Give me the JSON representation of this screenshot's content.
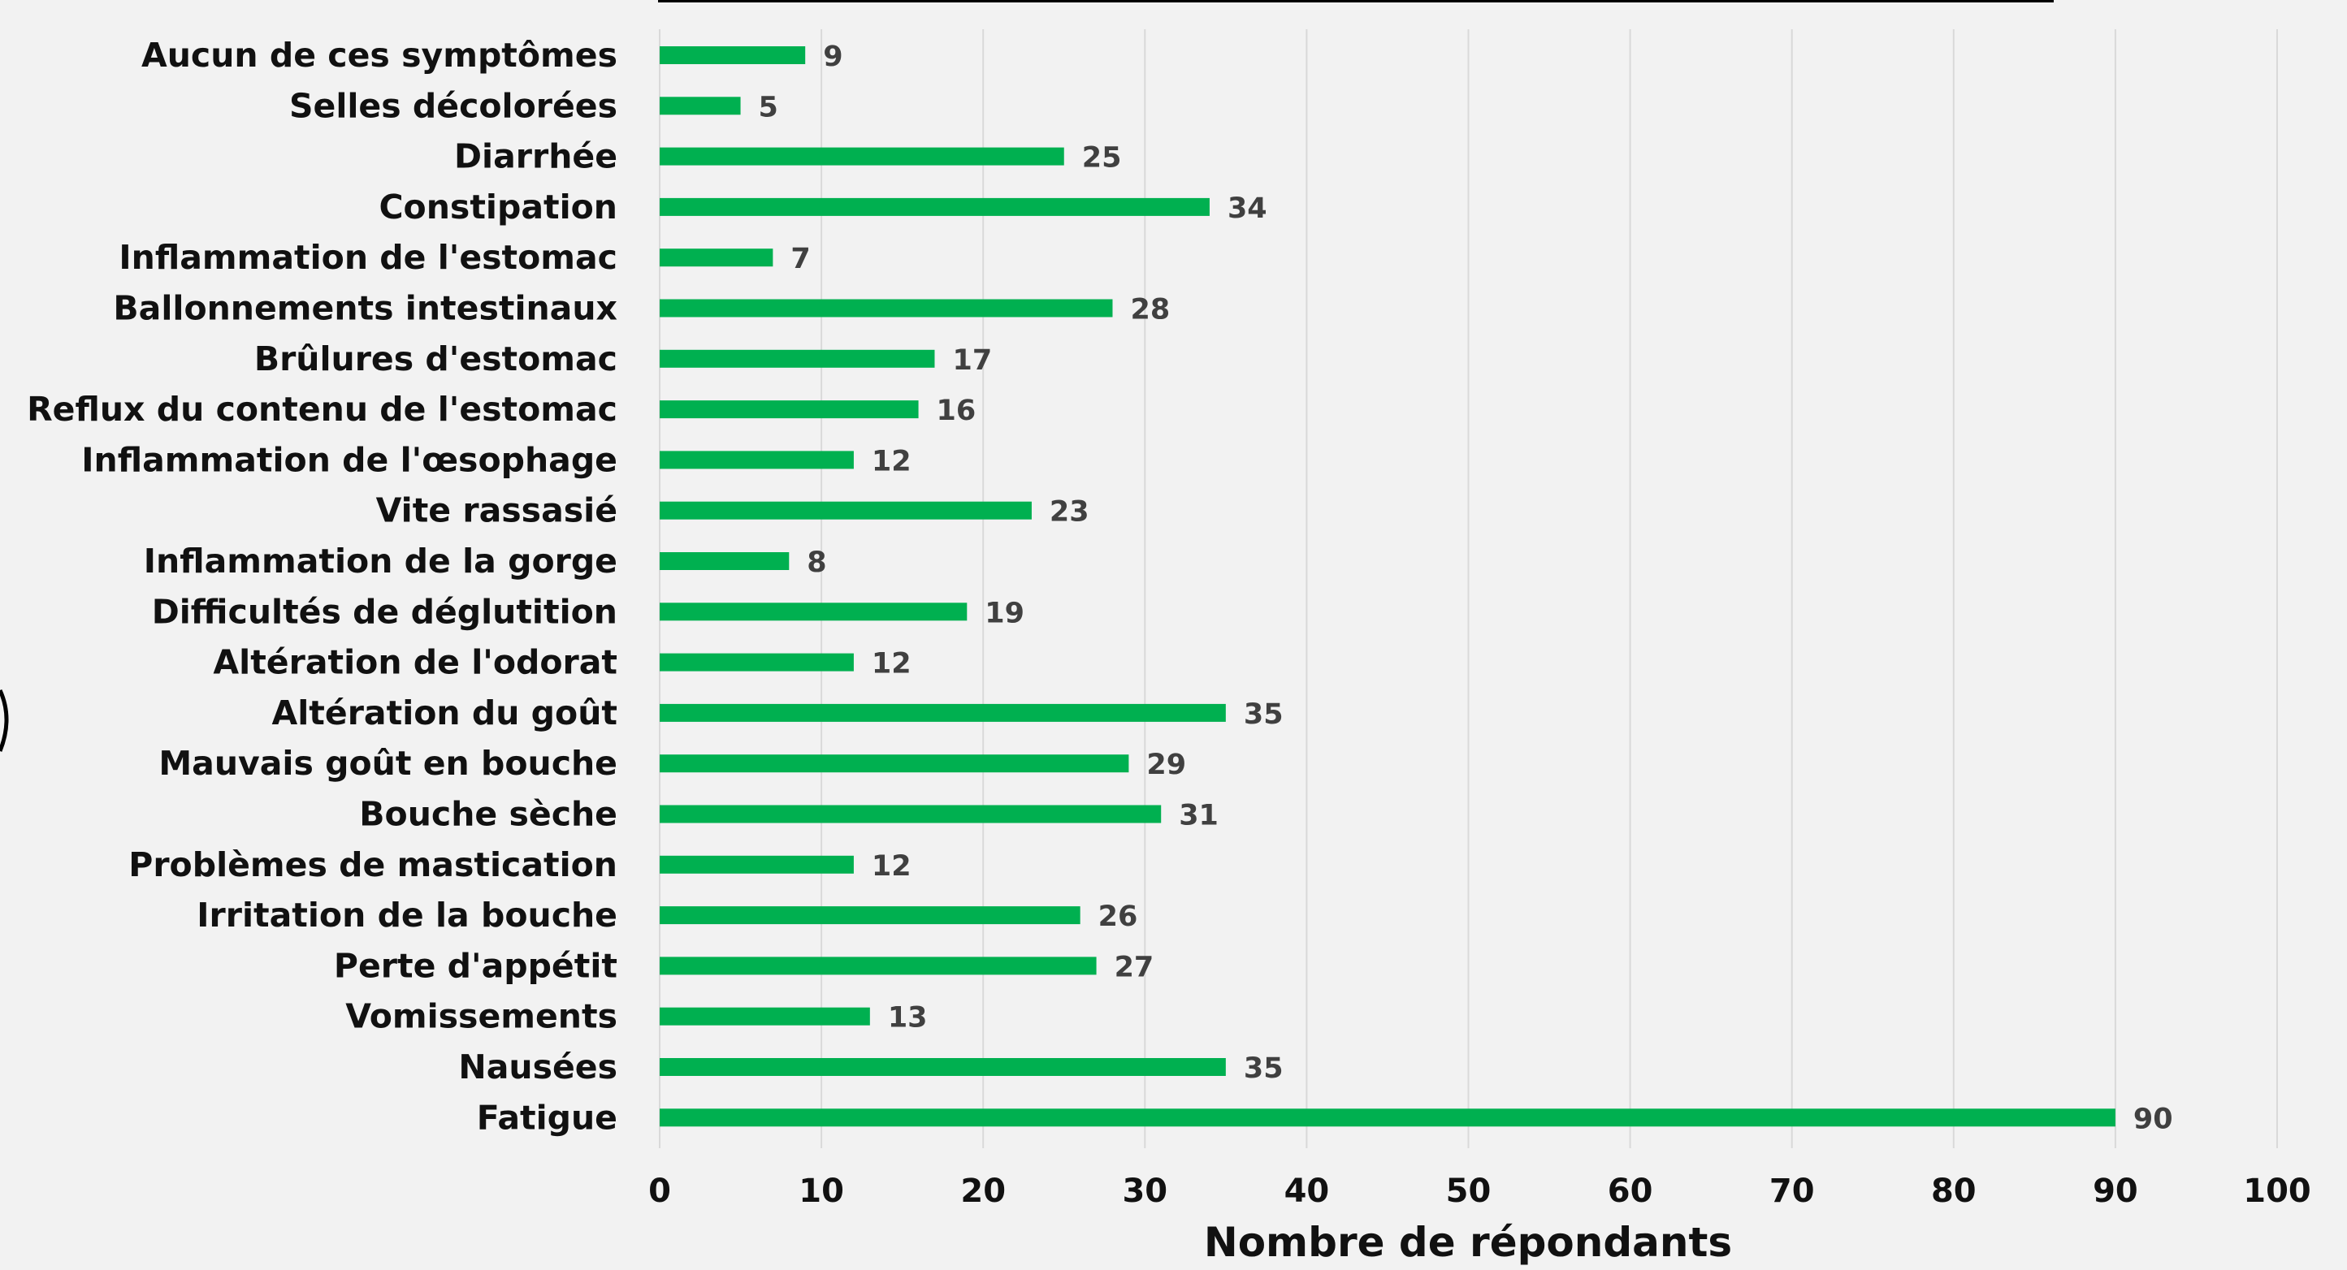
{
  "chart_data": {
    "type": "bar",
    "orientation": "horizontal",
    "title": "",
    "xlabel": "Nombre de répondants",
    "ylabel": "",
    "xlim": [
      0,
      100
    ],
    "xticks": [
      0,
      10,
      20,
      30,
      40,
      50,
      60,
      70,
      80,
      90,
      100
    ],
    "grid": "vertical",
    "legend": "none",
    "bar_color": "#00b050",
    "categories": [
      "Aucun de ces symptômes",
      "Selles décolorées",
      "Diarrhée",
      "Constipation",
      "Inflammation de l'estomac",
      "Ballonnements intestinaux",
      "Brûlures d'estomac",
      "Reflux du contenu de l'estomac",
      "Inflammation de l'œsophage",
      "Vite rassasié",
      "Inflammation de la gorge",
      "Difficultés de déglutition",
      "Altération de l'odorat",
      "Altération du goût",
      "Mauvais goût en bouche",
      "Bouche sèche",
      "Problèmes de mastication",
      "Irritation de la bouche",
      "Perte d'appétit",
      "Vomissements",
      "Nausées",
      "Fatigue"
    ],
    "values": [
      9,
      5,
      25,
      34,
      7,
      28,
      17,
      16,
      12,
      23,
      8,
      19,
      12,
      35,
      29,
      31,
      12,
      26,
      27,
      13,
      35,
      90
    ]
  }
}
